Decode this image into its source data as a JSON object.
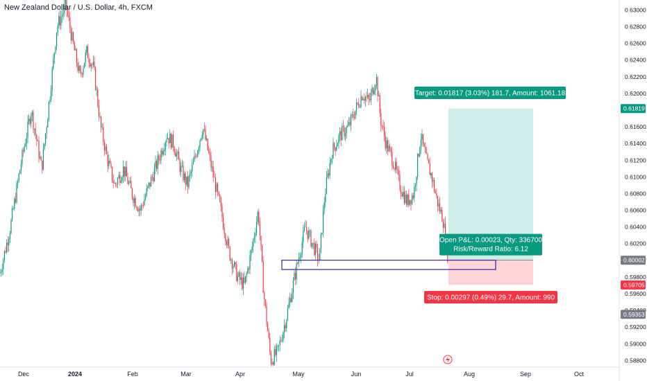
{
  "chart_data": {
    "type": "candlestick",
    "title": "New Zealand Dollar / U.S. Dollar, 4h, FXCM",
    "y_axis": {
      "ticks": [
        "0.63000",
        "0.62800",
        "0.62600",
        "0.62400",
        "0.62200",
        "0.62000",
        "0.61600",
        "0.61400",
        "0.61200",
        "0.61000",
        "0.60800",
        "0.60600",
        "0.60400",
        "0.60200",
        "0.60025",
        "0.59800",
        "0.59600",
        "0.59400",
        "0.59200",
        "0.59000",
        "0.58800"
      ],
      "ylim": [
        0.5872,
        0.6312
      ]
    },
    "x_axis": {
      "ticks": [
        "Dec",
        "2024",
        "Feb",
        "Mar",
        "Apr",
        "May",
        "Jun",
        "Jul",
        "Aug",
        "Sep",
        "Oct"
      ]
    },
    "price_path": [
      [
        0,
        0.5985
      ],
      [
        15,
        0.604
      ],
      [
        30,
        0.6115
      ],
      [
        45,
        0.618
      ],
      [
        60,
        0.611
      ],
      [
        72,
        0.62
      ],
      [
        82,
        0.628
      ],
      [
        95,
        0.6305
      ],
      [
        105,
        0.626
      ],
      [
        115,
        0.622
      ],
      [
        125,
        0.625
      ],
      [
        135,
        0.623
      ],
      [
        145,
        0.616
      ],
      [
        155,
        0.612
      ],
      [
        165,
        0.609
      ],
      [
        178,
        0.611
      ],
      [
        190,
        0.608
      ],
      [
        202,
        0.606
      ],
      [
        215,
        0.609
      ],
      [
        228,
        0.612
      ],
      [
        240,
        0.615
      ],
      [
        250,
        0.614
      ],
      [
        260,
        0.611
      ],
      [
        270,
        0.609
      ],
      [
        280,
        0.612
      ],
      [
        292,
        0.616
      ],
      [
        305,
        0.611
      ],
      [
        318,
        0.606
      ],
      [
        330,
        0.601
      ],
      [
        342,
        0.598
      ],
      [
        352,
        0.597
      ],
      [
        362,
        0.601
      ],
      [
        372,
        0.606
      ],
      [
        380,
        0.596
      ],
      [
        390,
        0.588
      ],
      [
        400,
        0.589
      ],
      [
        412,
        0.593
      ],
      [
        422,
        0.597
      ],
      [
        432,
        0.601
      ],
      [
        440,
        0.604
      ],
      [
        450,
        0.602
      ],
      [
        460,
        0.6
      ],
      [
        468,
        0.608
      ],
      [
        478,
        0.613
      ],
      [
        490,
        0.615
      ],
      [
        502,
        0.616
      ],
      [
        512,
        0.618
      ],
      [
        522,
        0.62
      ],
      [
        532,
        0.619
      ],
      [
        542,
        0.622
      ],
      [
        548,
        0.617
      ],
      [
        556,
        0.614
      ],
      [
        566,
        0.612
      ],
      [
        576,
        0.609
      ],
      [
        586,
        0.607
      ],
      [
        596,
        0.608
      ],
      [
        606,
        0.615
      ],
      [
        614,
        0.612
      ],
      [
        622,
        0.61
      ],
      [
        630,
        0.607
      ],
      [
        638,
        0.605
      ],
      [
        646,
        0.6
      ]
    ],
    "position": {
      "type": "long",
      "entry": 0.60002,
      "target": 0.61819,
      "stop": 0.59705,
      "target_label": "Target: 0.01817 (3.03%) 181.7, Amount: 1061.18",
      "stop_label": "Stop: 0.00297 (0.49%) 29.7, Amount: 990",
      "center_label_1": "Open P&L: 0.00023, Qty: 336700",
      "center_label_2": "Risk/Reward Ratio: 6.12"
    },
    "zone": {
      "top": 0.60002,
      "bottom": 0.5989,
      "color": "#3b1fa3"
    },
    "price_badges": [
      {
        "value": "0.61819",
        "color": "#089981"
      },
      {
        "value": "0.60002",
        "color": "#787b86"
      },
      {
        "value": "0.59705",
        "color": "#f23645"
      },
      {
        "value": "0.59353",
        "color": "#787b86"
      }
    ],
    "colors": {
      "up": "#089981",
      "down": "#f23645",
      "profit_fill": "#cfece6",
      "loss_fill": "#fbd4d7"
    }
  }
}
